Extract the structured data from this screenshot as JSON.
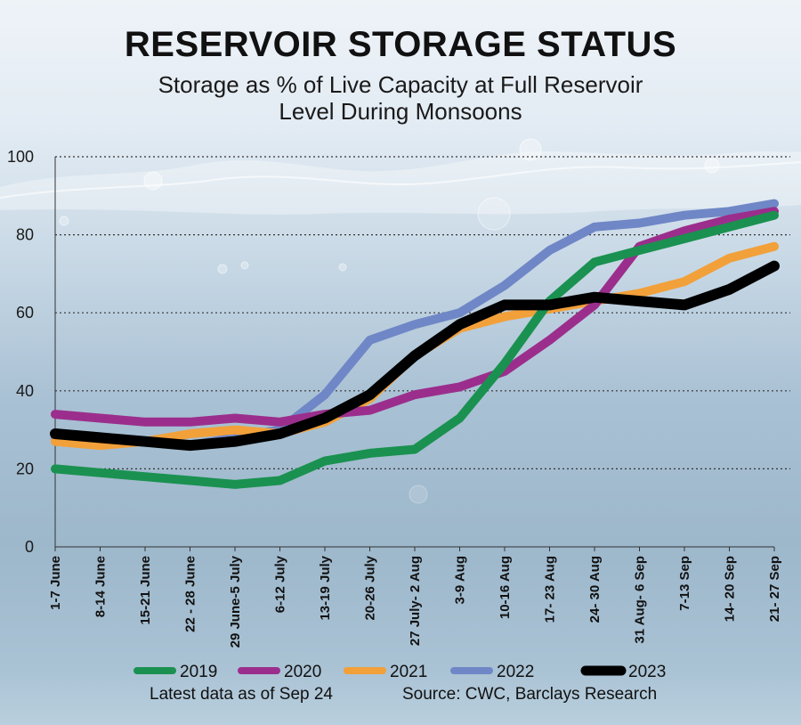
{
  "title": "RESERVOIR STORAGE STATUS",
  "subtitle_line1": "Storage as % of Live Capacity at Full Reservoir",
  "subtitle_line2": "Level During Monsoons",
  "footer": {
    "latest": "Latest data as of Sep 24",
    "source": "Source: CWC, Barclays Research"
  },
  "colors": {
    "2019": "#1a9150",
    "2020": "#9b2e8c",
    "2021": "#f2a03a",
    "2022": "#6f87c6",
    "2023": "#000000"
  },
  "chart_data": {
    "type": "line",
    "title": "RESERVOIR STORAGE STATUS",
    "ylabel": "Storage as % of Live Capacity at Full Reservoir Level",
    "xlabel": "",
    "ylim": [
      0,
      100
    ],
    "yticks": [
      0,
      20,
      40,
      60,
      80,
      100
    ],
    "grid": "horizontal dotted",
    "legend": "bottom",
    "categories": [
      "1-7 June",
      "8-14 June",
      "15-21 June",
      "22 - 28 June",
      "29 June-5 July",
      "6-12 July",
      "13-19 July",
      "20-26 July",
      "27 July- 2 Aug",
      "3-9 Aug",
      "10-16 Aug",
      "17- 23 Aug",
      "24- 30 Aug",
      "31 Aug- 6 Sep",
      "7-13 Sep",
      "14- 20 Sep",
      "21- 27 Sep"
    ],
    "series": [
      {
        "name": "2022",
        "values": [
          28,
          27,
          27,
          26,
          28,
          30,
          39,
          53,
          57,
          60,
          67,
          76,
          82,
          83,
          85,
          86,
          88
        ]
      },
      {
        "name": "2021",
        "values": [
          27,
          26,
          27,
          29,
          30,
          29,
          32,
          38,
          49,
          56,
          59,
          61,
          63,
          65,
          68,
          74,
          77
        ]
      },
      {
        "name": "2020",
        "values": [
          34,
          33,
          32,
          32,
          33,
          32,
          34,
          35,
          39,
          41,
          45,
          53,
          62,
          77,
          81,
          84,
          86
        ]
      },
      {
        "name": "2019",
        "values": [
          20,
          19,
          18,
          17,
          16,
          17,
          22,
          24,
          25,
          33,
          47,
          63,
          73,
          76,
          79,
          82,
          85
        ]
      },
      {
        "name": "2023",
        "values": [
          29,
          28,
          27,
          26,
          27,
          29,
          33,
          39,
          49,
          57,
          62,
          62,
          64,
          63,
          62,
          66,
          72
        ]
      }
    ],
    "legend_order": [
      "2019",
      "2020",
      "2021",
      "2022",
      "2023"
    ]
  }
}
